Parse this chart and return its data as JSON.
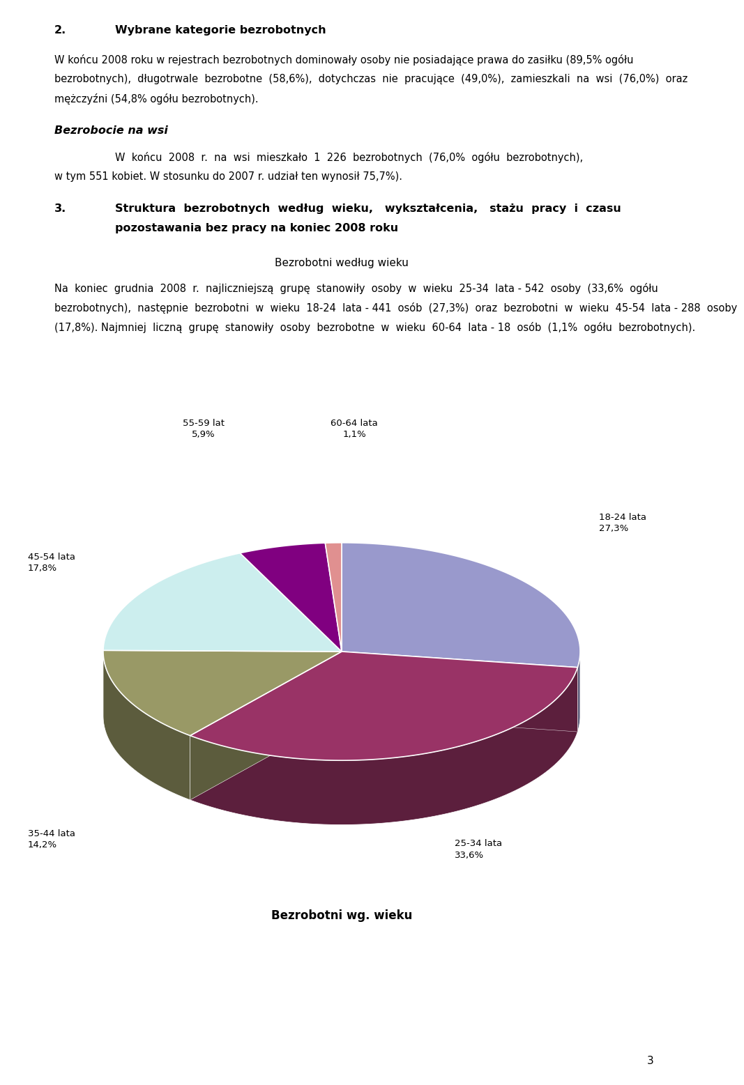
{
  "background_color": "#ffffff",
  "page_number": "3",
  "section2_num": "2.",
  "section2_title": "Wybrane kategorie bezrobotnych",
  "para1": [
    "W końcu 2008 roku w rejestrach bezrobotnych dominowały osoby nie posiadające prawa do zasiłku (89,5% ogółu",
    "bezrobotnych),  długotrwale  bezrobotne  (58,6%),  dotychczas  nie  pracujące  (49,0%),  zamieszkali  na  wsi  (76,0%)  oraz",
    "mężczyźni (54,8% ogółu bezrobotnych)."
  ],
  "subtitle_wsi": "Bezrobocie na wsi",
  "para2": [
    "W  końcu  2008  r.  na  wsi  mieszkało  1  226  bezrobotnych  (76,0%  ogółu  bezrobotnych),",
    "w tym 551 kobiet. W stosunku do 2007 r. udział ten wynosił 75,7%)."
  ],
  "section3_num": "3.",
  "section3_title_line1": "Struktura  bezrobotnych  według  wieku,   wykształcenia,   stażu  pracy  i  czasu",
  "section3_title_line2": "pozostawania bez pracy na koniec 2008 roku",
  "chart_header": "Bezrobotni według wieku",
  "para3": [
    "Na  koniec  grudnia  2008  r.  najliczniejszą  grupę  stanowiły  osoby  w  wieku  25-34  lata - 542  osoby  (33,6%  ogółu",
    "bezrobotnych),  następnie  bezrobotni  w  wieku  18-24  lata - 441  osób  (27,3%)  oraz  bezrobotni  w  wieku  45-54  lata - 288  osoby",
    "(17,8%). Najmniej  liczną  grupę  stanowiły  osoby  bezrobotne  w  wieku  60-64  lata - 18  osób  (1,1%  ogółu  bezrobotnych)."
  ],
  "chart_title": "Bezrobotni wg. wieku",
  "slices": [
    {
      "label1": "18-24 lata",
      "label2": "27,3%",
      "value": 27.3,
      "color": "#9999cc"
    },
    {
      "label1": "25-34 lata",
      "label2": "33,6%",
      "value": 33.6,
      "color": "#993366"
    },
    {
      "label1": "35-44 lata",
      "label2": "14,2%",
      "value": 14.2,
      "color": "#999966"
    },
    {
      "label1": "45-54 lata",
      "label2": "17,8%",
      "value": 17.8,
      "color": "#cceeee"
    },
    {
      "label1": "55-59 lat",
      "label2": "5,9%",
      "value": 5.9,
      "color": "#800080"
    },
    {
      "label1": "60-64 lata",
      "label2": "1,1%",
      "value": 1.1,
      "color": "#e09090"
    }
  ]
}
